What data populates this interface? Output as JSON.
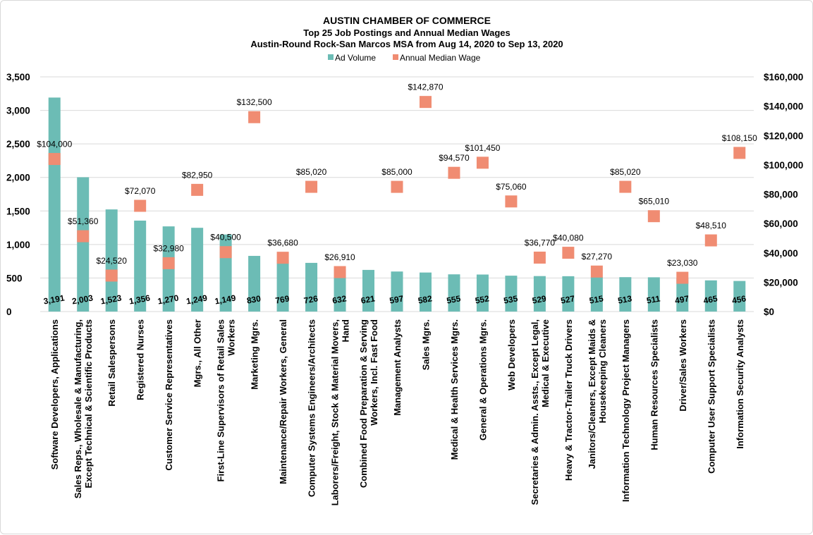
{
  "chart_data": {
    "type": "bar",
    "title": "AUSTIN CHAMBER OF COMMERCE",
    "subtitle_lines": [
      "Top 25 Job Postings and Annual Median Wages",
      "Austin-Round Rock-San Marcos MSA from Aug 14, 2020 to Sep 13, 2020"
    ],
    "legend": {
      "position": "top",
      "items": [
        "Ad Volume",
        "Annual Median Wage"
      ]
    },
    "colors": {
      "bars": "#6cbcb5",
      "markers": "#f08c72",
      "grid": "#d9d9d9"
    },
    "grid": true,
    "y_left": {
      "min": 0,
      "max": 3500,
      "ticks": [
        "0",
        "500",
        "1,000",
        "1,500",
        "2,000",
        "2,500",
        "3,000",
        "3,500"
      ]
    },
    "y_right": {
      "min": 0,
      "max": 160000,
      "ticks": [
        "$0",
        "$20,000",
        "$40,000",
        "$60,000",
        "$80,000",
        "$100,000",
        "$120,000",
        "$140,000",
        "$160,000"
      ]
    },
    "categories": [
      [
        "Software Developers, Applications"
      ],
      [
        "Sales Reps., Wholesale & Manufacturing,",
        "Except Technical & Scientific Products"
      ],
      [
        "Retail Salespersons"
      ],
      [
        "Registered Nurses"
      ],
      [
        "Customer Service Representatives"
      ],
      [
        "Mgrs., All Other"
      ],
      [
        "First-Line Supervisors of Retail Sales",
        "Workers"
      ],
      [
        "Marketing Mgrs."
      ],
      [
        "Maintenance/Repair Workers, General"
      ],
      [
        "Computer Systems Engineers/Architects"
      ],
      [
        "Laborers/Freight, Stock & Material Movers,",
        "Hand"
      ],
      [
        "Combined Food Preparation & Serving",
        "Workers, Incl. Fast Food"
      ],
      [
        "Management Analysts"
      ],
      [
        "Sales Mgrs."
      ],
      [
        "Medical & Health Services Mgrs."
      ],
      [
        "General & Operations Mgrs."
      ],
      [
        "Web Developers"
      ],
      [
        "Secretaries & Admin. Assts., Except Legal,",
        "Medical & Executive"
      ],
      [
        "Heavy & Tractor-Trailer Truck Drivers"
      ],
      [
        "Janitors/Cleaners, Except Maids &",
        "Housekeeping Cleaners"
      ],
      [
        "Information Technology Project Managers"
      ],
      [
        "Human Resources Specialists"
      ],
      [
        "Driver/Sales Workers"
      ],
      [
        "Computer User Support Specialists"
      ],
      [
        "Information Security Analysts"
      ]
    ],
    "series": [
      {
        "name": "Ad Volume",
        "axis": "left",
        "values": [
          3191,
          2003,
          1523,
          1356,
          1270,
          1249,
          1149,
          830,
          769,
          726,
          632,
          621,
          597,
          582,
          555,
          552,
          535,
          529,
          527,
          515,
          513,
          511,
          497,
          465,
          456
        ],
        "labels": [
          "3,191",
          "2,003",
          "1,523",
          "1,356",
          "1,270",
          "1,249",
          "1,149",
          "830",
          "769",
          "726",
          "632",
          "621",
          "597",
          "582",
          "555",
          "552",
          "535",
          "529",
          "527",
          "515",
          "513",
          "511",
          "497",
          "465",
          "456"
        ]
      },
      {
        "name": "Annual Median Wage",
        "axis": "right",
        "values": [
          104000,
          51360,
          24520,
          72070,
          32980,
          82950,
          40500,
          132500,
          36680,
          85020,
          26910,
          null,
          85000,
          142870,
          94570,
          101450,
          75060,
          36770,
          40080,
          27270,
          85020,
          65010,
          23030,
          48510,
          108150
        ],
        "labels": [
          "$104,000",
          "$51,360",
          "$24,520",
          "$72,070",
          "$32,980",
          "$82,950",
          "$40,500",
          "$132,500",
          "$36,680",
          "$85,020",
          "$26,910",
          "",
          "$85,000",
          "$142,870",
          "$94,570",
          "$101,450",
          "$75,060",
          "$36,770",
          "$40,080",
          "$27,270",
          "$85,020",
          "$65,010",
          "$23,030",
          "$48,510",
          "$108,150"
        ]
      }
    ]
  }
}
